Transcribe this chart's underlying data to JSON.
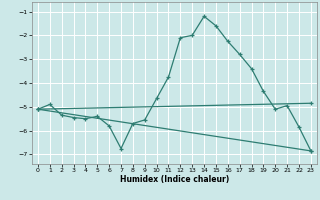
{
  "xlabel": "Humidex (Indice chaleur)",
  "bg_color": "#cce8e8",
  "grid_color": "#ffffff",
  "line_color": "#2e7d72",
  "xlim": [
    -0.5,
    23.5
  ],
  "ylim": [
    -7.4,
    -0.6
  ],
  "yticks": [
    -1,
    -2,
    -3,
    -4,
    -5,
    -6,
    -7
  ],
  "xticks": [
    0,
    1,
    2,
    3,
    4,
    5,
    6,
    7,
    8,
    9,
    10,
    11,
    12,
    13,
    14,
    15,
    16,
    17,
    18,
    19,
    20,
    21,
    22,
    23
  ],
  "line1_x": [
    0,
    1,
    2,
    3,
    4,
    5,
    6,
    7,
    8,
    9,
    10,
    11,
    12,
    13,
    14,
    15,
    16,
    17,
    18,
    19,
    20,
    21,
    22,
    23
  ],
  "line1_y": [
    -5.1,
    -4.9,
    -5.35,
    -5.45,
    -5.5,
    -5.4,
    -5.8,
    -6.75,
    -5.7,
    -5.55,
    -4.65,
    -3.75,
    -2.1,
    -2.0,
    -1.2,
    -1.6,
    -2.25,
    -2.8,
    -3.4,
    -4.35,
    -5.1,
    -4.95,
    -5.85,
    -6.85
  ],
  "line2_x": [
    0,
    23
  ],
  "line2_y": [
    -5.1,
    -4.85
  ],
  "line3_x": [
    0,
    23
  ],
  "line3_y": [
    -5.1,
    -6.85
  ]
}
